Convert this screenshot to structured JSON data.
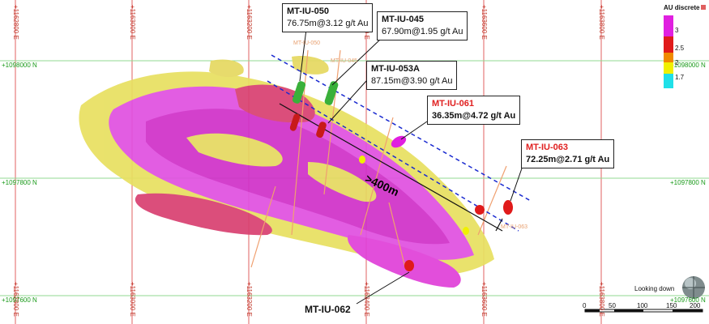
{
  "grid": {
    "eastings": [
      "+1162800 E",
      "+1163000 E",
      "+1163200 E",
      "+1163400 E",
      "+1163600 E",
      "+1163800 E"
    ],
    "northings": [
      "+1098000 N",
      "+1097800 N",
      "+1097600 N"
    ]
  },
  "callouts": {
    "mt_iu_050": {
      "name": "MT-IU-050",
      "interval": "76.75m@3.12 g/t Au"
    },
    "mt_iu_045": {
      "name": "MT-IU-045",
      "interval": "67.90m@1.95 g/t Au"
    },
    "mt_iu_053a": {
      "name": "MT-IU-053A",
      "interval": "87.15m@3.90 g/t Au"
    },
    "mt_iu_061": {
      "name": "MT-IU-061",
      "interval": "36.35m@4.72 g/t Au"
    },
    "mt_iu_063": {
      "name": "MT-IU-063",
      "interval": "72.25m@2.71 g/t Au"
    }
  },
  "distance_label": ">400m",
  "bottom_label": "MT-IU-062",
  "faint_labels": {
    "a": "MT-IU-050",
    "b": "MT-IU-045",
    "c": "MT-IU-063"
  },
  "legend": {
    "title": "AU discrete",
    "levels": [
      "3",
      "2.5",
      "2",
      "1.7"
    ],
    "colors": [
      "#e020e0",
      "#e01a1a",
      "#f08a00",
      "#f0f000",
      "#20e0e8"
    ]
  },
  "scale": {
    "ticks": [
      "0",
      "50",
      "100",
      "150",
      "200"
    ]
  },
  "view_label": "Looking down",
  "colors": {
    "grid_green": "#90d890",
    "grid_red": "#e06060",
    "dashed": "#1a2ad0",
    "hole_green": "#3ab03a"
  }
}
